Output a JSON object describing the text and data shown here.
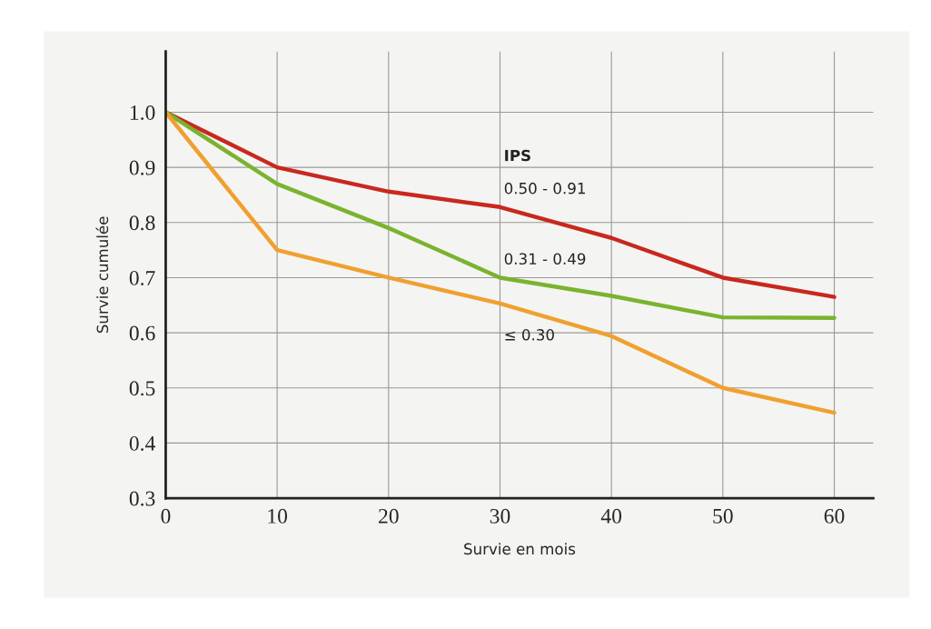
{
  "chart_data": {
    "type": "line",
    "xlabel": "Survie en mois",
    "ylabel": "Survie cumulée",
    "legend_title": "IPS",
    "x": [
      0,
      10,
      20,
      30,
      40,
      50,
      60
    ],
    "series": [
      {
        "name": "0.50 - 0.91",
        "color": "#c8281e",
        "values": [
          1.0,
          0.9,
          0.856,
          0.828,
          0.772,
          0.7,
          0.665
        ]
      },
      {
        "name": "0.31 - 0.49",
        "color": "#7ab32e",
        "values": [
          1.0,
          0.87,
          0.79,
          0.7,
          0.667,
          0.628,
          0.627
        ]
      },
      {
        "name": "≤ 0.30",
        "color": "#f0a030",
        "values": [
          1.0,
          0.75,
          0.7,
          0.653,
          0.594,
          0.5,
          0.455
        ]
      }
    ],
    "xlim": [
      0,
      63.5
    ],
    "ylim": [
      0.3,
      1.11
    ],
    "xticks": [
      0,
      10,
      20,
      30,
      40,
      50,
      60
    ],
    "yticks": [
      {
        "value": 0.3,
        "label": "0.3"
      },
      {
        "value": 0.4,
        "label": "0.4"
      },
      {
        "value": 0.5,
        "label": "0.5"
      },
      {
        "value": 0.6,
        "label": "0.6"
      },
      {
        "value": 0.7,
        "label": "0.7"
      },
      {
        "value": 0.8,
        "label": "0.8"
      },
      {
        "value": 0.9,
        "label": "0.9"
      },
      {
        "value": 1.0,
        "label": "1.0"
      }
    ],
    "grid": true,
    "legend": false,
    "marker": "none",
    "line_style": "solid"
  }
}
